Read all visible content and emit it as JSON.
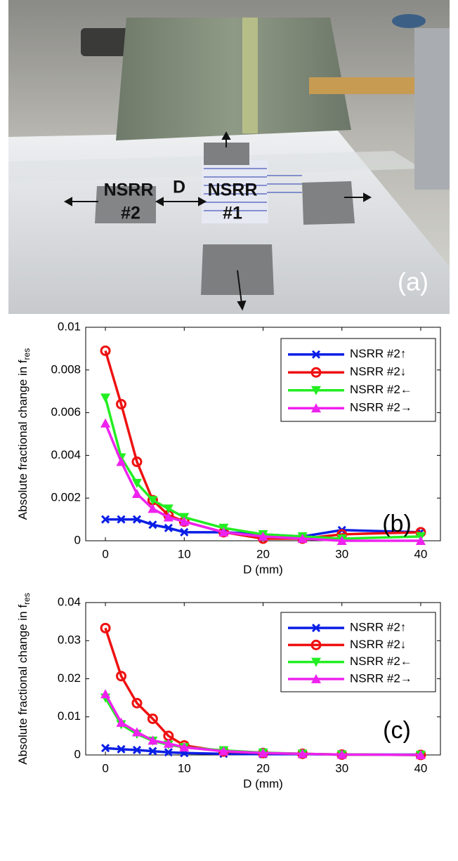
{
  "photo": {
    "labels": [
      "NSRR",
      "#2",
      "D",
      "NSRR",
      "#1"
    ],
    "panel_label": "(a)"
  },
  "chart_data": [
    {
      "type": "line",
      "panel_label": "(b)",
      "xlabel": "D (mm)",
      "ylabel": {
        "text": "Absolute fractional change in f",
        "subscript": "res"
      },
      "x": [
        0,
        2,
        4,
        6,
        8,
        10,
        15,
        20,
        25,
        30,
        40
      ],
      "xlim": [
        -2.5,
        42.5
      ],
      "xticks": [
        0,
        10,
        20,
        30,
        40
      ],
      "ylim": [
        0,
        0.01
      ],
      "yticks": [
        0,
        0.002,
        0.004,
        0.006,
        0.008,
        0.01
      ],
      "grid": false,
      "legend": "upper right",
      "series": [
        {
          "name": "NSRR #2↑",
          "color": "#0a1ee6",
          "marker": "x",
          "values": [
            0.001,
            0.001,
            0.001,
            0.00075,
            0.0006,
            0.0004,
            0.0004,
            0.0003,
            0.0002,
            0.0005,
            0.0004
          ]
        },
        {
          "name": "NSRR #2↓",
          "color": "#ee1111",
          "marker": "o",
          "values": [
            0.0089,
            0.0064,
            0.0037,
            0.0019,
            0.0012,
            0.0009,
            0.0004,
            0.0001,
            0.0001,
            0.0003,
            0.0004
          ]
        },
        {
          "name": "NSRR #2←",
          "color": "#22ee22",
          "marker": "v",
          "values": [
            0.0067,
            0.0039,
            0.0027,
            0.0019,
            0.0015,
            0.0011,
            0.0006,
            0.0003,
            0.0002,
            0.0001,
            0.0002
          ]
        },
        {
          "name": "NSRR #2→",
          "color": "#ee22ee",
          "marker": "^",
          "values": [
            0.0055,
            0.0037,
            0.0022,
            0.0015,
            0.0011,
            0.0009,
            0.0004,
            0.0002,
            0.0001,
            0,
            0
          ]
        }
      ]
    },
    {
      "type": "line",
      "panel_label": "(c)",
      "xlabel": "D (mm)",
      "ylabel": {
        "text": "Absolute fractional change in f",
        "subscript": "res"
      },
      "x": [
        0,
        2,
        4,
        6,
        8,
        10,
        15,
        20,
        25,
        30,
        40
      ],
      "xlim": [
        -2.5,
        42.5
      ],
      "xticks": [
        0,
        10,
        20,
        30,
        40
      ],
      "ylim": [
        0,
        0.04
      ],
      "yticks": [
        0,
        0.01,
        0.02,
        0.03,
        0.04
      ],
      "grid": false,
      "legend": "upper right",
      "series": [
        {
          "name": "NSRR #2↑",
          "color": "#0a1ee6",
          "marker": "x",
          "values": [
            0.0018,
            0.0015,
            0.0013,
            0.001,
            0.0007,
            0.0005,
            0.0003,
            0.0002,
            0.0002,
            0.0001,
            0.0001
          ]
        },
        {
          "name": "NSRR #2↓",
          "color": "#ee1111",
          "marker": "o",
          "values": [
            0.0333,
            0.0207,
            0.0136,
            0.0095,
            0.005,
            0.0025,
            0.0009,
            0.0005,
            0.0003,
            0.0001,
            0
          ]
        },
        {
          "name": "NSRR #2←",
          "color": "#22ee22",
          "marker": "v",
          "values": [
            0.015,
            0.008,
            0.0055,
            0.0037,
            0.0027,
            0.002,
            0.0012,
            0.0006,
            0.0003,
            0.0001,
            0
          ]
        },
        {
          "name": "NSRR #2→",
          "color": "#ee22ee",
          "marker": "^",
          "values": [
            0.016,
            0.0085,
            0.006,
            0.0038,
            0.003,
            0.002,
            0.001,
            0.0005,
            0.0003,
            0.0001,
            0
          ]
        }
      ]
    }
  ]
}
